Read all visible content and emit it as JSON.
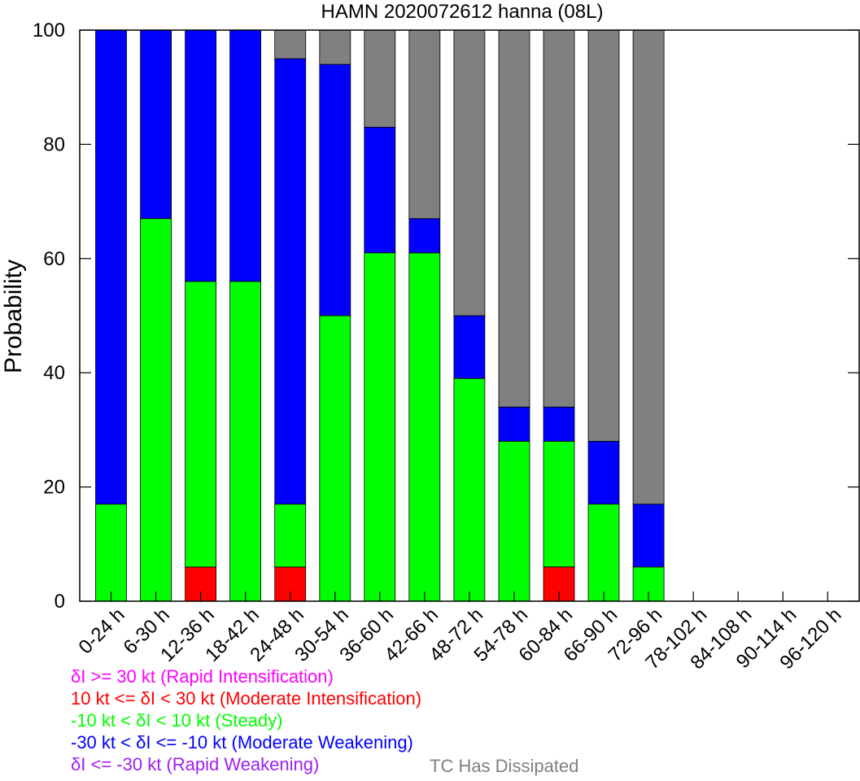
{
  "chart_data": {
    "type": "bar",
    "stacked": true,
    "title": "HAMN 2020072612 hanna (08L)",
    "xlabel": "",
    "ylabel": "Probability",
    "ylim": [
      0,
      100
    ],
    "yticks": [
      "0",
      "20",
      "40",
      "60",
      "80",
      "100"
    ],
    "grid": false,
    "categories": [
      "0-24 h",
      "6-30 h",
      "12-36 h",
      "18-42 h",
      "24-48 h",
      "30-54 h",
      "36-60 h",
      "42-66 h",
      "48-72 h",
      "54-78 h",
      "60-84 h",
      "66-90 h",
      "72-96 h",
      "78-102 h",
      "84-108 h",
      "90-114 h",
      "96-120 h"
    ],
    "series": [
      {
        "key": "ri",
        "color": "#ff00ff",
        "values": [
          0,
          0,
          0,
          0,
          0,
          0,
          0,
          0,
          0,
          0,
          0,
          0,
          0,
          0,
          0,
          0,
          0
        ]
      },
      {
        "key": "mi",
        "color": "#ff0000",
        "values": [
          0,
          0,
          6,
          0,
          6,
          0,
          0,
          0,
          0,
          0,
          6,
          0,
          0,
          0,
          0,
          0,
          0
        ]
      },
      {
        "key": "steady",
        "color": "#00ff00",
        "values": [
          17,
          67,
          50,
          56,
          11,
          50,
          61,
          61,
          39,
          28,
          22,
          17,
          6,
          0,
          0,
          0,
          0
        ]
      },
      {
        "key": "mw",
        "color": "#0000ff",
        "values": [
          83,
          33,
          44,
          44,
          78,
          44,
          22,
          6,
          11,
          6,
          6,
          11,
          11,
          0,
          0,
          0,
          0
        ]
      },
      {
        "key": "rw",
        "color": "#a020f0",
        "values": [
          0,
          0,
          0,
          0,
          0,
          0,
          0,
          0,
          0,
          0,
          0,
          0,
          0,
          0,
          0,
          0,
          0
        ]
      },
      {
        "key": "dissipated",
        "color": "#808080",
        "values": [
          0,
          0,
          0,
          0,
          5,
          6,
          17,
          33,
          50,
          66,
          66,
          72,
          83,
          0,
          0,
          0,
          0
        ]
      }
    ]
  },
  "legend": {
    "items": [
      {
        "text": "δI >= 30 kt (Rapid Intensification)",
        "color": "#ff00ff"
      },
      {
        "text": "10 kt <= δI < 30 kt (Moderate Intensification)",
        "color": "#ff0000"
      },
      {
        "text": "-10 kt < δI < 10 kt (Steady)",
        "color": "#00ff00"
      },
      {
        "text": "-30 kt < δI <= -10 kt (Moderate Weakening)",
        "color": "#0000ff"
      },
      {
        "text": "δI <= -30 kt (Rapid Weakening)",
        "color": "#a020f0"
      }
    ],
    "dissipated": {
      "text": "TC Has Dissipated",
      "color": "#808080"
    }
  }
}
